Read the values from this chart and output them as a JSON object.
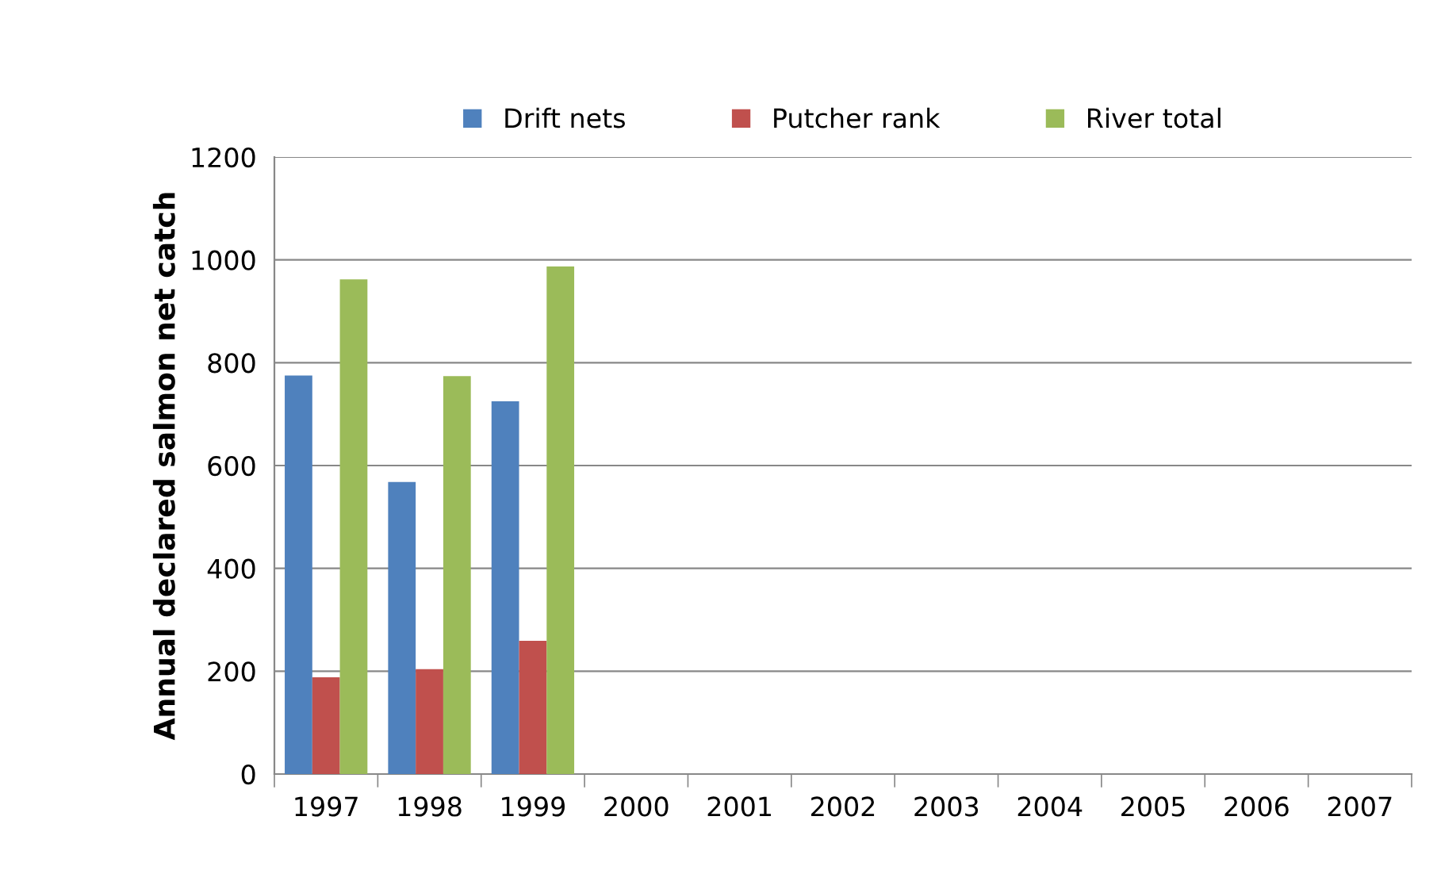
{
  "chart_data": {
    "type": "bar",
    "ylabel": "Annual declared salmon net catch",
    "categories": [
      "1997",
      "1998",
      "1999",
      "2000",
      "2001",
      "2002",
      "2003",
      "2004",
      "2005",
      "2006",
      "2007"
    ],
    "series": [
      {
        "name": "Drift nets",
        "color": "#4f81bd",
        "values": [
          775,
          568,
          725,
          null,
          null,
          null,
          null,
          null,
          null,
          null,
          null
        ]
      },
      {
        "name": "Putcher rank",
        "color": "#c0504d",
        "values": [
          188,
          204,
          259,
          null,
          null,
          null,
          null,
          null,
          null,
          null,
          null
        ]
      },
      {
        "name": "River total",
        "color": "#9bbb59",
        "values": [
          962,
          774,
          987,
          null,
          null,
          null,
          null,
          null,
          null,
          null,
          null
        ]
      }
    ],
    "ylim": [
      0,
      1200
    ],
    "yticks": [
      0,
      200,
      400,
      600,
      800,
      1000,
      1200
    ],
    "grid": "y",
    "legend": "top"
  }
}
